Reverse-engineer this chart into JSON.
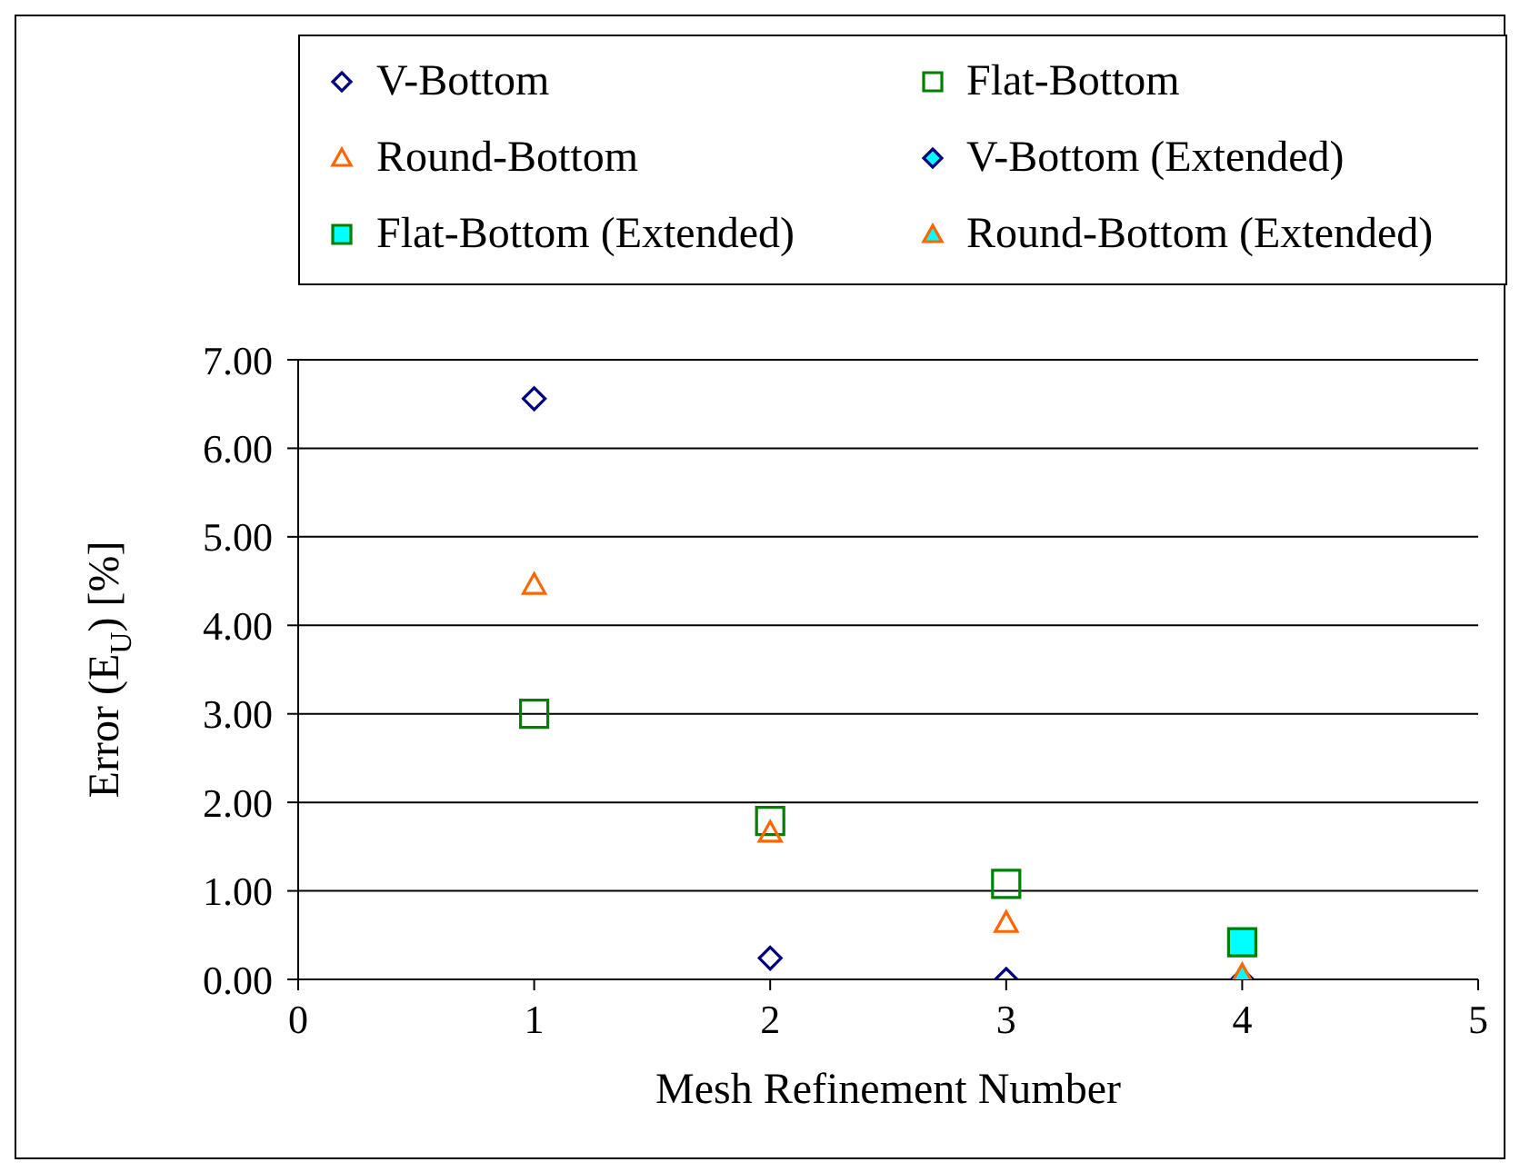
{
  "chart_data": {
    "type": "scatter",
    "xlabel": "Mesh Refinement Number",
    "ylabel": "Error (E$_{U}$) [%]",
    "xlim": [
      0,
      5
    ],
    "xticks": [
      0,
      1,
      2,
      3,
      4,
      5
    ],
    "ylim": [
      0,
      7
    ],
    "yticks": [
      {
        "value": 0,
        "label": "0.00"
      },
      {
        "value": 1,
        "label": "1.00"
      },
      {
        "value": 2,
        "label": "2.00"
      },
      {
        "value": 3,
        "label": "3.00"
      },
      {
        "value": 4,
        "label": "4.00"
      },
      {
        "value": 5,
        "label": "5.00"
      },
      {
        "value": 6,
        "label": "6.00"
      },
      {
        "value": 7,
        "label": "7.00"
      }
    ],
    "grid": "y",
    "legend": "top",
    "series": [
      {
        "name": "V-Bottom",
        "color": "#000080",
        "marker": "diamond",
        "x": [
          1,
          2,
          3
        ],
        "values": [
          6.56,
          0.24,
          0.0
        ]
      },
      {
        "name": "Flat-Bottom",
        "color": "#008000",
        "marker": "square",
        "x": [
          1,
          2,
          3
        ],
        "values": [
          3.0,
          1.79,
          1.08
        ]
      },
      {
        "name": "Round-Bottom",
        "color": "#ff6600",
        "marker": "triangle",
        "x": [
          1,
          2,
          3
        ],
        "values": [
          4.46,
          1.66,
          0.64
        ]
      },
      {
        "name": "V-Bottom (Extended)",
        "color": "#00ffff",
        "marker": "diamond",
        "x": [
          4
        ],
        "values": [
          0.0
        ]
      },
      {
        "name": "Flat-Bottom (Extended)",
        "color": "#00ffff",
        "marker": "square",
        "x": [
          4
        ],
        "values": [
          0.42
        ]
      },
      {
        "name": "Round-Bottom (Extended)",
        "color": "#00ffff",
        "marker": "triangle",
        "x": [
          4
        ],
        "values": [
          0.05
        ]
      }
    ]
  }
}
